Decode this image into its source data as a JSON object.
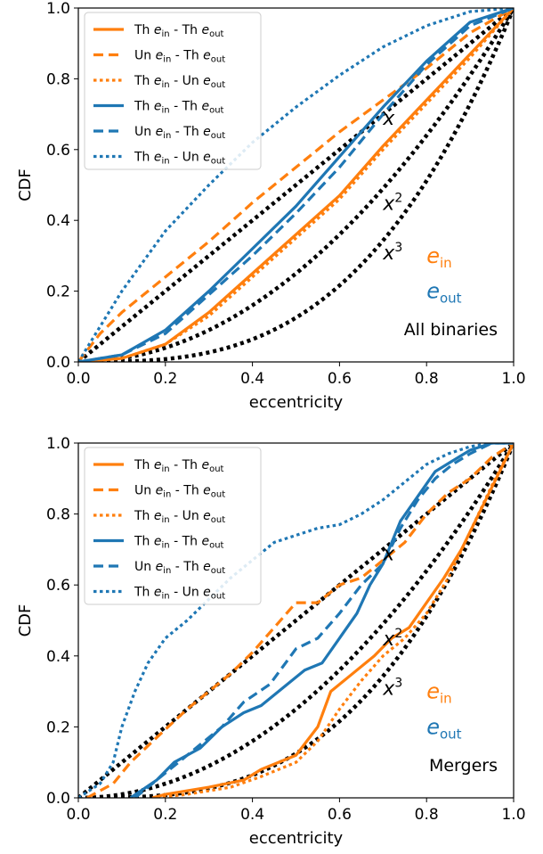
{
  "colors": {
    "orange": "#ff7f0e",
    "blue": "#1f77b4",
    "black": "#000000"
  },
  "chart_data": [
    {
      "type": "line",
      "panel_label": "All binaries",
      "xlabel": "eccentricity",
      "ylabel": "CDF",
      "xlim": [
        0,
        1
      ],
      "ylim": [
        0,
        1
      ],
      "xticks": [
        "0.0",
        "0.2",
        "0.4",
        "0.6",
        "0.8",
        "1.0"
      ],
      "yticks": [
        "0.0",
        "0.2",
        "0.4",
        "0.6",
        "0.8",
        "1.0"
      ],
      "legend_position": "upper-left",
      "legend": [
        {
          "a": "Th",
          "b": "in",
          "c": "Th",
          "d": "out"
        },
        {
          "a": "Un",
          "b": "in",
          "c": "Th",
          "d": "out"
        },
        {
          "a": "Th",
          "b": "in",
          "c": "Un",
          "d": "out"
        },
        {
          "a": "Th",
          "b": "in",
          "c": "Th",
          "d": "out"
        },
        {
          "a": "Un",
          "b": "in",
          "c": "Th",
          "d": "out"
        },
        {
          "a": "Th",
          "b": "in",
          "c": "Un",
          "d": "out"
        }
      ],
      "reference_curves": [
        {
          "label": "x",
          "exponent": 1
        },
        {
          "label": "x",
          "sup": "2",
          "exponent": 2
        },
        {
          "label": "x",
          "sup": "3",
          "exponent": 3
        }
      ],
      "color_labels": [
        {
          "base": "e",
          "sub": "in",
          "color": "#ff7f0e"
        },
        {
          "base": "e",
          "sub": "out",
          "color": "#1f77b4"
        }
      ],
      "series": [
        {
          "color": "#ff7f0e",
          "style": "solid",
          "x": [
            0,
            0.1,
            0.2,
            0.3,
            0.4,
            0.5,
            0.6,
            0.7,
            0.8,
            0.9,
            1.0
          ],
          "y": [
            0,
            0.01,
            0.05,
            0.14,
            0.25,
            0.36,
            0.47,
            0.61,
            0.74,
            0.87,
            1.0
          ]
        },
        {
          "color": "#ff7f0e",
          "style": "dashed",
          "x": [
            0,
            0.05,
            0.1,
            0.2,
            0.3,
            0.4,
            0.5,
            0.6,
            0.7,
            0.8,
            0.9,
            1.0
          ],
          "y": [
            0,
            0.08,
            0.14,
            0.24,
            0.34,
            0.45,
            0.55,
            0.65,
            0.74,
            0.83,
            0.93,
            1.0
          ]
        },
        {
          "color": "#ff7f0e",
          "style": "dotted",
          "x": [
            0,
            0.1,
            0.2,
            0.3,
            0.4,
            0.5,
            0.6,
            0.7,
            0.8,
            0.9,
            1.0
          ],
          "y": [
            0,
            0.01,
            0.05,
            0.13,
            0.24,
            0.35,
            0.46,
            0.6,
            0.73,
            0.86,
            1.0
          ]
        },
        {
          "color": "#1f77b4",
          "style": "solid",
          "x": [
            0,
            0.1,
            0.2,
            0.3,
            0.4,
            0.5,
            0.6,
            0.7,
            0.8,
            0.9,
            1.0
          ],
          "y": [
            0,
            0.02,
            0.09,
            0.2,
            0.32,
            0.44,
            0.58,
            0.72,
            0.85,
            0.96,
            1.0
          ]
        },
        {
          "color": "#1f77b4",
          "style": "dashed",
          "x": [
            0,
            0.1,
            0.2,
            0.3,
            0.4,
            0.5,
            0.6,
            0.7,
            0.8,
            0.9,
            1.0
          ],
          "y": [
            0,
            0.02,
            0.08,
            0.19,
            0.3,
            0.42,
            0.55,
            0.7,
            0.84,
            0.95,
            1.0
          ]
        },
        {
          "color": "#1f77b4",
          "style": "dotted",
          "x": [
            0,
            0.05,
            0.1,
            0.2,
            0.3,
            0.4,
            0.5,
            0.6,
            0.7,
            0.8,
            0.9,
            1.0
          ],
          "y": [
            0,
            0.1,
            0.2,
            0.37,
            0.5,
            0.62,
            0.72,
            0.81,
            0.89,
            0.95,
            0.99,
            1.0
          ]
        }
      ]
    },
    {
      "type": "line",
      "panel_label": "Mergers",
      "xlabel": "eccentricity",
      "ylabel": "CDF",
      "xlim": [
        0,
        1
      ],
      "ylim": [
        0,
        1
      ],
      "xticks": [
        "0.0",
        "0.2",
        "0.4",
        "0.6",
        "0.8",
        "1.0"
      ],
      "yticks": [
        "0.0",
        "0.2",
        "0.4",
        "0.6",
        "0.8",
        "1.0"
      ],
      "legend_position": "upper-left",
      "legend": [
        {
          "a": "Th",
          "b": "in",
          "c": "Th",
          "d": "out"
        },
        {
          "a": "Un",
          "b": "in",
          "c": "Th",
          "d": "out"
        },
        {
          "a": "Th",
          "b": "in",
          "c": "Un",
          "d": "out"
        },
        {
          "a": "Th",
          "b": "in",
          "c": "Th",
          "d": "out"
        },
        {
          "a": "Un",
          "b": "in",
          "c": "Th",
          "d": "out"
        },
        {
          "a": "Th",
          "b": "in",
          "c": "Un",
          "d": "out"
        }
      ],
      "reference_curves": [
        {
          "label": "x",
          "exponent": 1
        },
        {
          "label": "x",
          "sup": "2",
          "exponent": 2
        },
        {
          "label": "x",
          "sup": "3",
          "exponent": 3
        }
      ],
      "color_labels": [
        {
          "base": "e",
          "sub": "in",
          "color": "#ff7f0e"
        },
        {
          "base": "e",
          "sub": "out",
          "color": "#1f77b4"
        }
      ],
      "series": [
        {
          "color": "#ff7f0e",
          "style": "solid",
          "x": [
            0.17,
            0.2,
            0.3,
            0.38,
            0.42,
            0.5,
            0.55,
            0.58,
            0.62,
            0.68,
            0.72,
            0.76,
            0.8,
            0.84,
            0.88,
            0.92,
            0.96,
            1.0
          ],
          "y": [
            0.0,
            0.01,
            0.03,
            0.05,
            0.08,
            0.12,
            0.2,
            0.3,
            0.34,
            0.4,
            0.45,
            0.48,
            0.55,
            0.62,
            0.7,
            0.8,
            0.9,
            1.0
          ]
        },
        {
          "color": "#ff7f0e",
          "style": "dashed",
          "x": [
            0.02,
            0.08,
            0.12,
            0.18,
            0.25,
            0.3,
            0.35,
            0.4,
            0.45,
            0.5,
            0.55,
            0.6,
            0.65,
            0.7,
            0.75,
            0.8,
            0.85,
            0.9,
            0.95,
            1.0
          ],
          "y": [
            0.0,
            0.04,
            0.1,
            0.17,
            0.25,
            0.3,
            0.35,
            0.41,
            0.48,
            0.55,
            0.55,
            0.6,
            0.62,
            0.67,
            0.72,
            0.8,
            0.86,
            0.9,
            0.96,
            1.0
          ]
        },
        {
          "color": "#ff7f0e",
          "style": "dotted",
          "x": [
            0.18,
            0.25,
            0.35,
            0.42,
            0.5,
            0.55,
            0.6,
            0.65,
            0.7,
            0.75,
            0.8,
            0.85,
            0.9,
            0.95,
            1.0
          ],
          "y": [
            0.0,
            0.01,
            0.03,
            0.06,
            0.1,
            0.16,
            0.25,
            0.33,
            0.4,
            0.45,
            0.52,
            0.62,
            0.75,
            0.88,
            1.0
          ]
        },
        {
          "color": "#1f77b4",
          "style": "solid",
          "x": [
            0.12,
            0.18,
            0.22,
            0.28,
            0.33,
            0.38,
            0.42,
            0.48,
            0.52,
            0.56,
            0.6,
            0.64,
            0.67,
            0.7,
            0.74,
            0.78,
            0.82,
            0.86,
            0.9,
            0.95,
            1.0
          ],
          "y": [
            0.0,
            0.05,
            0.1,
            0.14,
            0.2,
            0.24,
            0.26,
            0.32,
            0.36,
            0.38,
            0.45,
            0.52,
            0.6,
            0.66,
            0.78,
            0.85,
            0.92,
            0.95,
            0.98,
            1.0,
            1.0
          ]
        },
        {
          "color": "#1f77b4",
          "style": "dashed",
          "x": [
            0.13,
            0.2,
            0.28,
            0.33,
            0.38,
            0.44,
            0.5,
            0.55,
            0.6,
            0.65,
            0.7,
            0.74,
            0.78,
            0.82,
            0.86,
            0.9,
            0.95,
            1.0
          ],
          "y": [
            0.0,
            0.07,
            0.15,
            0.2,
            0.27,
            0.32,
            0.42,
            0.45,
            0.52,
            0.6,
            0.66,
            0.76,
            0.84,
            0.9,
            0.94,
            0.97,
            1.0,
            1.0
          ]
        },
        {
          "color": "#1f77b4",
          "style": "dotted",
          "x": [
            0.0,
            0.05,
            0.08,
            0.1,
            0.13,
            0.16,
            0.2,
            0.25,
            0.3,
            0.35,
            0.4,
            0.45,
            0.5,
            0.55,
            0.6,
            0.65,
            0.7,
            0.75,
            0.8,
            0.85,
            0.9,
            0.95,
            1.0
          ],
          "y": [
            0.0,
            0.04,
            0.1,
            0.2,
            0.3,
            0.38,
            0.45,
            0.5,
            0.56,
            0.62,
            0.67,
            0.72,
            0.74,
            0.76,
            0.77,
            0.8,
            0.84,
            0.89,
            0.94,
            0.97,
            0.99,
            1.0,
            1.0
          ]
        }
      ]
    }
  ]
}
